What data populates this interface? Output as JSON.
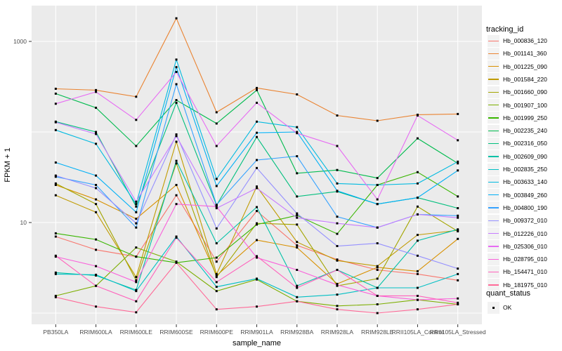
{
  "axes": {
    "x_title": "sample_name",
    "y_title": "FPKM + 1",
    "y_ticks": [
      {
        "value": 10,
        "label": "10"
      },
      {
        "value": 1000,
        "label": "1000"
      }
    ],
    "y_gridlines": [
      1,
      10,
      100,
      1000
    ],
    "y_scale": "log10"
  },
  "legend": {
    "tracking_title": "tracking_id",
    "quant_title": "quant_status",
    "quant_ok_label": "OK"
  },
  "colors": {
    "panel_bg": "#EBEBEB",
    "gridline": "#FFFFFF",
    "tick_text": "#4D4D4D",
    "axis_title_text": "#000000",
    "point": "#000000",
    "legend_key_bg": "#F2F2F2"
  },
  "chart_data": {
    "type": "line",
    "title": "",
    "xlabel": "sample_name",
    "ylabel": "FPKM + 1",
    "y_scale": "log10",
    "ylim": [
      0.85,
      2500
    ],
    "grid": true,
    "legend_position": "right",
    "marker": "square",
    "categories": [
      "PB350LA",
      "RRIM600LA",
      "RRIM600LE",
      "RRIM600SE",
      "RRIM600PE",
      "RRIM901LA",
      "RRIM928BA",
      "RRIM928LA",
      "RRIM928LE",
      "RRII105LA_Control",
      "RRII105LA_Stressed"
    ],
    "series": [
      {
        "name": "Hb_000836_120",
        "color": "#F8766D",
        "values": [
          7.0,
          5.0,
          4.2,
          20,
          3.7,
          13.4,
          5.6,
          3.9,
          3.0,
          2.7,
          2.3
        ]
      },
      {
        "name": "Hb_001141_360",
        "color": "#EA8331",
        "values": [
          300,
          290,
          245,
          1800,
          165,
          306,
          260,
          152,
          133,
          155,
          158
        ]
      },
      {
        "name": "Hb_001225_090",
        "color": "#D89000",
        "values": [
          26,
          18,
          11,
          26,
          2.6,
          6.4,
          5.3,
          2.1,
          3.2,
          2.9,
          6.6
        ]
      },
      {
        "name": "Hb_001584_220",
        "color": "#C09B00",
        "values": [
          20,
          13,
          2.5,
          78,
          2.7,
          25,
          6.1,
          3.8,
          3.3,
          7.3,
          8.2
        ]
      },
      {
        "name": "Hb_001660_090",
        "color": "#A3A500",
        "values": [
          27,
          16,
          2.3,
          45,
          2.5,
          9.8,
          9.5,
          2.0,
          2.4,
          15,
          8.0
        ]
      },
      {
        "name": "Hb_001907_100",
        "color": "#7CAE00",
        "values": [
          1.55,
          2.0,
          5.3,
          3.7,
          1.75,
          2.35,
          1.35,
          1.2,
          1.25,
          1.4,
          1.25
        ]
      },
      {
        "name": "Hb_001999_250",
        "color": "#39B600",
        "values": [
          7.6,
          6.5,
          4.2,
          3.6,
          4.1,
          9.5,
          12,
          7.5,
          26,
          36,
          19.4
        ]
      },
      {
        "name": "Hb_002235_240",
        "color": "#00BB4E",
        "values": [
          265,
          185,
          70,
          225,
          124,
          290,
          35,
          38,
          31,
          85,
          45
        ]
      },
      {
        "name": "Hb_002316_050",
        "color": "#00BF7D",
        "values": [
          130,
          100,
          15,
          210,
          15.5,
          88,
          19.4,
          22,
          16,
          18.8,
          14.4
        ]
      },
      {
        "name": "Hb_002609_090",
        "color": "#00C1A7",
        "values": [
          2.8,
          2.6,
          1.8,
          48,
          5.9,
          14.8,
          2.0,
          3.0,
          1.9,
          6.3,
          8.4
        ]
      },
      {
        "name": "Hb_002835_250",
        "color": "#00BFC4",
        "values": [
          2.7,
          2.65,
          1.75,
          7.0,
          1.95,
          2.4,
          1.5,
          1.6,
          1.9,
          1.9,
          2.7
        ]
      },
      {
        "name": "Hb_003633_140",
        "color": "#00BAE0",
        "values": [
          105,
          74,
          16,
          630,
          30.3,
          130,
          113,
          27,
          26,
          27,
          47
        ]
      },
      {
        "name": "Hb_003849_260",
        "color": "#00B0F6",
        "values": [
          46,
          33,
          13,
          520,
          25.3,
          98,
          100,
          22.4,
          16,
          18.8,
          37.6
        ]
      },
      {
        "name": "Hb_004800_190",
        "color": "#35A2FF",
        "values": [
          32,
          26,
          8.8,
          337,
          15.7,
          49,
          54,
          11.6,
          8.8,
          12.3,
          11.9
        ]
      },
      {
        "name": "Hb_009372_010",
        "color": "#9590FF",
        "values": [
          33,
          24,
          9.8,
          94,
          8.6,
          40,
          12.6,
          5.5,
          5.9,
          4.3,
          3.1
        ]
      },
      {
        "name": "Hb_012226_010",
        "color": "#C77CFF",
        "values": [
          128,
          95,
          17,
          90,
          14.4,
          24,
          11.3,
          9.8,
          8.8,
          12.3,
          11.3
        ]
      },
      {
        "name": "Hb_025306_010",
        "color": "#E76BF3",
        "values": [
          205,
          277,
          136,
          460,
          70,
          210,
          97,
          70,
          18,
          152,
          81
        ]
      },
      {
        "name": "Hb_028795_010",
        "color": "#FA62DB",
        "values": [
          4.2,
          3.3,
          2.2,
          16,
          15.0,
          4.1,
          3.0,
          2.05,
          1.55,
          1.4,
          1.45
        ]
      },
      {
        "name": "Hb_154471_010",
        "color": "#FF62BC",
        "values": [
          4.3,
          2.0,
          1.35,
          6.8,
          2.2,
          4.25,
          1.9,
          3.0,
          1.55,
          1.55,
          1.3
        ]
      },
      {
        "name": "Hb_181975_010",
        "color": "#FF6A98",
        "values": [
          1.5,
          1.18,
          1.02,
          3.6,
          1.1,
          1.18,
          1.35,
          1.1,
          1.0,
          1.1,
          1.25
        ]
      }
    ]
  }
}
